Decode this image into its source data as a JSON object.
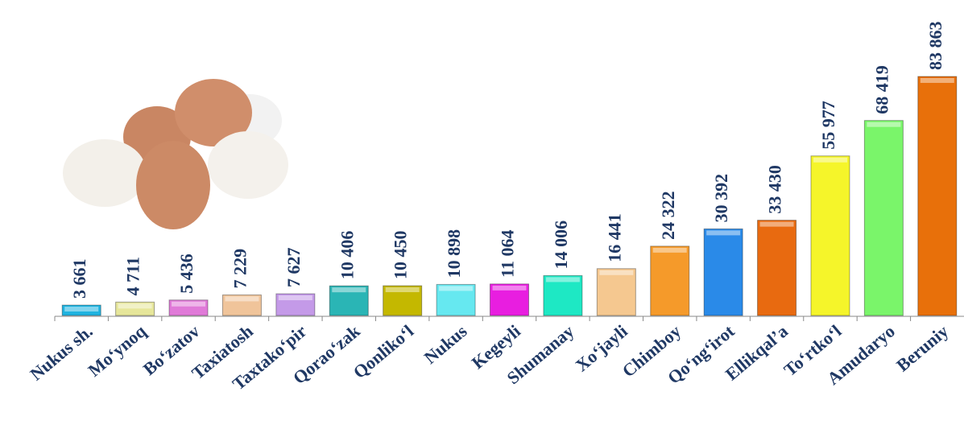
{
  "chart_data": {
    "type": "bar",
    "categories": [
      "Nukus sh.",
      "Mo‘ynoq",
      "Bo‘zatov",
      "Taxiatosh",
      "Taxtako‘pir",
      "Qorao‘zak",
      "Qonliko‘l",
      "Nukus",
      "Kegeyli",
      "Shumanay",
      "Xo‘jayli",
      "Chimboy",
      "Qo‘ng‘irot",
      "Ellikqal’a",
      "To‘rtko‘l",
      "Amudaryo",
      "Beruniy"
    ],
    "values": [
      3661,
      4711,
      5436,
      7229,
      7627,
      10406,
      10450,
      10898,
      11064,
      14006,
      16441,
      24322,
      30392,
      33430,
      55977,
      68419,
      83863
    ],
    "value_labels": [
      "3 661",
      "4 711",
      "5 436",
      "7 229",
      "7 627",
      "10 406",
      "10 450",
      "10 898",
      "11 064",
      "14 006",
      "16 441",
      "24 322",
      "30 392",
      "33 430",
      "55 977",
      "68 419",
      "83 863"
    ],
    "colors": [
      "#1fb3e0",
      "#e6e69a",
      "#e07ad8",
      "#f0c49a",
      "#c49ae8",
      "#2ab5b5",
      "#c4b800",
      "#66e8f0",
      "#e81ee0",
      "#1ee8c4",
      "#f5c890",
      "#f59a2a",
      "#2a8ae8",
      "#e86a10",
      "#f5f52a",
      "#7af56a",
      "#e8700a"
    ]
  }
}
